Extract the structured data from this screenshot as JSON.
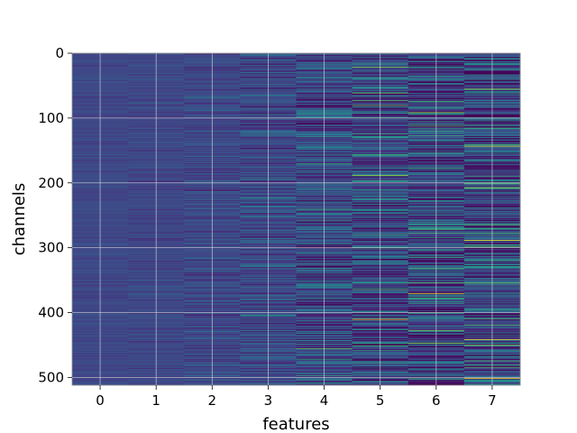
{
  "chart_data": {
    "type": "heatmap",
    "title": "",
    "xlabel": "features",
    "ylabel": "channels",
    "columns": 8,
    "rows": 512,
    "x_ticks": [
      "0",
      "1",
      "2",
      "3",
      "4",
      "5",
      "6",
      "7"
    ],
    "y_ticks": [
      "0",
      "100",
      "200",
      "300",
      "400",
      "500"
    ],
    "y_tick_values": [
      0,
      100,
      200,
      300,
      400,
      500
    ],
    "ylim": [
      512,
      0
    ],
    "xlim": [
      -0.5,
      7.5
    ],
    "y_inverted": true,
    "grid": true,
    "colormap": "viridis",
    "background_color": "#3b4b8a",
    "column_contrast": [
      0.05,
      0.07,
      0.1,
      0.16,
      0.24,
      0.3,
      0.32,
      0.36
    ],
    "highlights": [
      {
        "col": 3,
        "row": 10,
        "v": 0.55
      },
      {
        "col": 4,
        "row": 125,
        "v": 0.5
      },
      {
        "col": 4,
        "row": 230,
        "v": 0.55
      },
      {
        "col": 4,
        "row": 497,
        "v": 0.7
      },
      {
        "col": 4,
        "row": 503,
        "v": 0.65
      },
      {
        "col": 5,
        "row": 70,
        "v": 0.0
      },
      {
        "col": 5,
        "row": 128,
        "v": 0.6
      },
      {
        "col": 5,
        "row": 188,
        "v": 0.9
      },
      {
        "col": 5,
        "row": 290,
        "v": 0.6
      },
      {
        "col": 5,
        "row": 375,
        "v": 0.02
      },
      {
        "col": 6,
        "row": 112,
        "v": 0.8
      },
      {
        "col": 6,
        "row": 196,
        "v": 0.6
      },
      {
        "col": 6,
        "row": 400,
        "v": 0.7
      },
      {
        "col": 6,
        "row": 427,
        "v": 0.85
      },
      {
        "col": 7,
        "row": 130,
        "v": 0.6
      },
      {
        "col": 7,
        "row": 143,
        "v": 0.95
      },
      {
        "col": 7,
        "row": 262,
        "v": 0.55
      },
      {
        "col": 7,
        "row": 322,
        "v": 0.6
      },
      {
        "col": 7,
        "row": 370,
        "v": 0.65
      },
      {
        "col": 7,
        "row": 435,
        "v": 0.6
      },
      {
        "col": 7,
        "row": 484,
        "v": 0.8
      }
    ]
  }
}
